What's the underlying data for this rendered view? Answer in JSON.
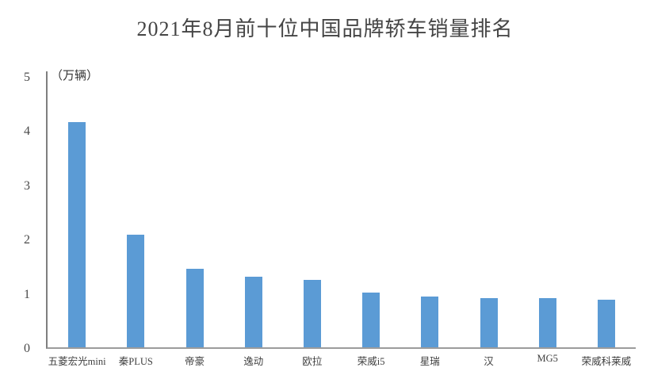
{
  "chart_data": {
    "type": "bar",
    "title": "2021年8月前十位中国品牌轿车销量排名",
    "unit_label": "（万辆）",
    "ylabel": "（万辆）",
    "xlabel": "",
    "categories": [
      "五菱宏光mini",
      "秦PLUS",
      "帝豪",
      "逸动",
      "欧拉",
      "荣威i5",
      "星瑞",
      "汉",
      "MG5",
      "荣威科莱威"
    ],
    "values": [
      4.15,
      2.08,
      1.45,
      1.3,
      1.24,
      1.01,
      0.93,
      0.9,
      0.9,
      0.88
    ],
    "ylim": [
      0,
      5
    ],
    "yticks": [
      0,
      1,
      2,
      3,
      4,
      5
    ],
    "grid": false,
    "legend": "none",
    "bar_color": "#5b9bd5",
    "axis_color": "#8a8a8a",
    "title_color": "#454545",
    "label_color": "#3f3f3f"
  }
}
